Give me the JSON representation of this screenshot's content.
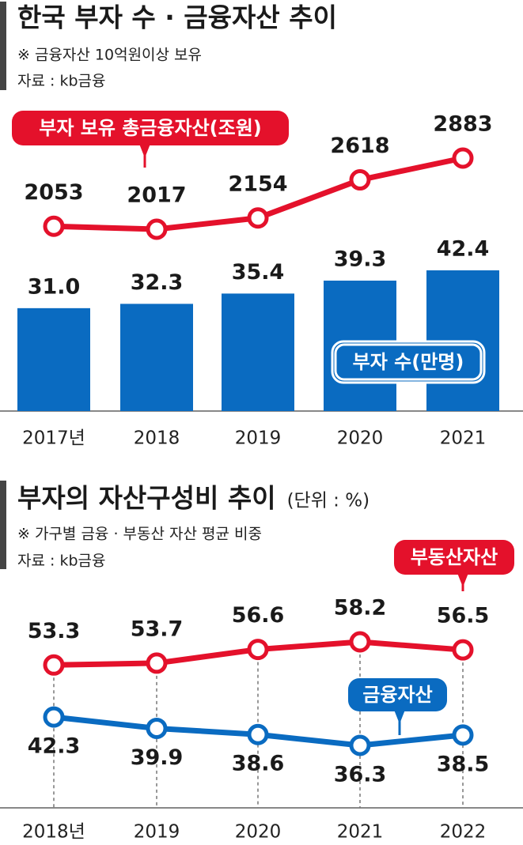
{
  "chart_data": [
    {
      "type": "combo",
      "title": "한국 부자 수 · 금융자산 추이",
      "subtitle": "※ 금융자산 10억원이상 보유",
      "source": "자료 : kb금융",
      "categories": [
        "2017년",
        "2018",
        "2019",
        "2020",
        "2021"
      ],
      "series": [
        {
          "name": "부자 보유 총금융자산(조원)",
          "type": "line",
          "color": "#e4112b",
          "values": [
            2053,
            2017,
            2154,
            2618,
            2883
          ]
        },
        {
          "name": "부자 수(만명)",
          "type": "bar",
          "color": "#0a6bc1",
          "values": [
            31.0,
            32.3,
            35.4,
            39.3,
            42.4
          ],
          "value_labels": [
            "31.0",
            "32.3",
            "35.4",
            "39.3",
            "42.4"
          ]
        }
      ]
    },
    {
      "type": "line",
      "title": "부자의 자산구성비 추이",
      "unit": "(단위 : %)",
      "subtitle": "※ 가구별 금융 · 부동산 자산 평균 비중",
      "source": "자료 : kb금융",
      "categories": [
        "2018년",
        "2019",
        "2020",
        "2021",
        "2022"
      ],
      "series": [
        {
          "name": "부동산자산",
          "type": "line",
          "color": "#e4112b",
          "values": [
            53.3,
            53.7,
            56.6,
            58.2,
            56.5
          ]
        },
        {
          "name": "금융자산",
          "type": "line",
          "color": "#0a6bc1",
          "values": [
            42.3,
            39.9,
            38.6,
            36.3,
            38.5
          ]
        }
      ]
    }
  ]
}
